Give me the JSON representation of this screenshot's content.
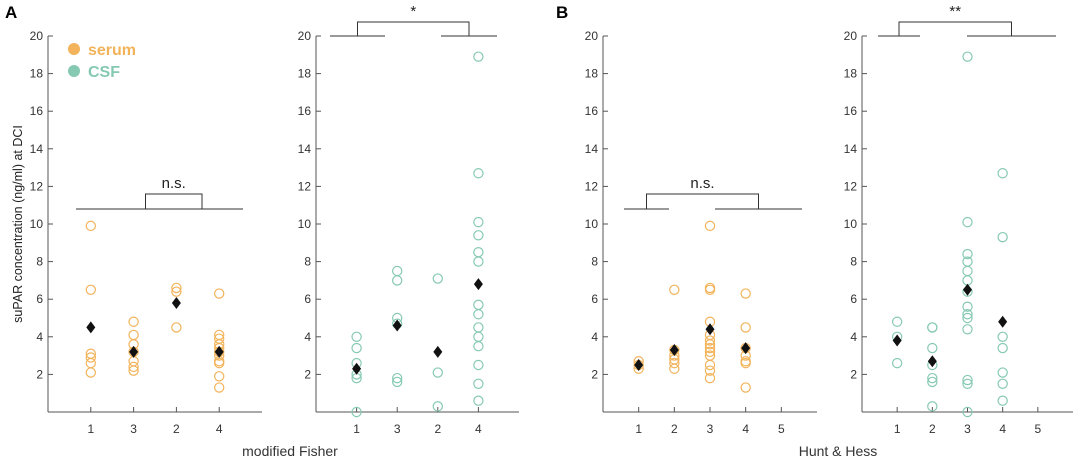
{
  "colors": {
    "serum": "#F2B35A",
    "csf": "#86C9B3",
    "mean": "#111111",
    "axis": "#555555",
    "bracket": "#333333"
  },
  "y_axis": {
    "label": "suPAR concentration (ng/ml) at DCI",
    "ylim": [
      0,
      20
    ],
    "ticks": [
      2,
      4,
      6,
      8,
      10,
      12,
      14,
      16,
      18,
      20
    ]
  },
  "legend": {
    "entries": [
      {
        "label": "serum",
        "series": "serum"
      },
      {
        "label": "CSF",
        "series": "csf"
      }
    ]
  },
  "panels": [
    {
      "letter": "A",
      "xlabel": "modified Fisher"
    },
    {
      "letter": "B",
      "xlabel": "Hunt & Hess"
    }
  ],
  "chart_data": [
    {
      "type": "scatter",
      "panel": "A",
      "series": "serum",
      "xlabel": "modified Fisher",
      "ylabel": "suPAR concentration (ng/ml) at DCI",
      "ylim": [
        0,
        20
      ],
      "categories": [
        "1",
        "3",
        "2",
        "4"
      ],
      "points": [
        [
          9.9,
          6.5,
          3.1,
          2.9,
          2.6,
          2.1
        ],
        [
          4.8,
          4.1,
          3.6,
          3.2,
          2.7,
          2.4,
          2.2
        ],
        [
          6.6,
          6.4,
          4.5
        ],
        [
          6.3,
          4.1,
          3.9,
          3.6,
          3.4,
          3.2,
          3.0,
          2.7,
          2.6,
          1.9,
          1.3
        ]
      ],
      "means": [
        4.5,
        3.2,
        5.8,
        3.2
      ],
      "significance": {
        "label": "n.s.",
        "groups": [
          [
            0,
            1
          ],
          [
            2,
            3
          ]
        ]
      }
    },
    {
      "type": "scatter",
      "panel": "A",
      "series": "csf",
      "xlabel": "modified Fisher",
      "ylim": [
        0,
        20
      ],
      "categories": [
        "1",
        "3",
        "2",
        "4"
      ],
      "points": [
        [
          4.0,
          3.4,
          2.6,
          2.0,
          1.8,
          0.0
        ],
        [
          7.5,
          7.0,
          5.0,
          4.7,
          1.8,
          1.6
        ],
        [
          7.1,
          2.1,
          0.3
        ],
        [
          18.9,
          12.7,
          10.1,
          9.4,
          8.5,
          8.0,
          5.7,
          5.2,
          4.5,
          4.0,
          3.5,
          2.5,
          1.5,
          0.6
        ]
      ],
      "means": [
        2.3,
        4.6,
        3.2,
        6.8
      ],
      "significance": {
        "label": "*",
        "groups": [
          [
            0,
            1
          ],
          [
            2,
            3
          ]
        ]
      }
    },
    {
      "type": "scatter",
      "panel": "B",
      "series": "serum",
      "xlabel": "Hunt & Hess",
      "ylim": [
        0,
        20
      ],
      "categories": [
        "1",
        "2",
        "3",
        "4",
        "5"
      ],
      "points": [
        [
          2.7,
          2.5,
          2.3
        ],
        [
          6.5,
          3.3,
          3.0,
          2.8,
          2.6,
          2.3
        ],
        [
          9.9,
          6.6,
          6.5,
          4.8,
          4.1,
          3.8,
          3.6,
          3.4,
          3.2,
          3.0,
          2.5,
          2.2,
          1.8
        ],
        [
          6.3,
          4.5,
          3.4,
          3.0,
          2.7,
          2.6,
          1.3
        ],
        []
      ],
      "means": [
        2.5,
        3.3,
        4.4,
        3.4,
        null
      ],
      "significance": {
        "label": "n.s.",
        "groups": [
          [
            0,
            1
          ],
          [
            2,
            4
          ]
        ]
      }
    },
    {
      "type": "scatter",
      "panel": "B",
      "series": "csf",
      "xlabel": "Hunt & Hess",
      "ylim": [
        0,
        20
      ],
      "categories": [
        "1",
        "2",
        "3",
        "4",
        "5"
      ],
      "points": [
        [
          4.8,
          4.0,
          2.6
        ],
        [
          4.5,
          4.5,
          3.4,
          2.5,
          1.8,
          1.6,
          0.3
        ],
        [
          18.9,
          10.1,
          8.4,
          8.0,
          7.5,
          7.0,
          6.4,
          5.6,
          5.2,
          5.0,
          4.4,
          1.7,
          1.5,
          0.0
        ],
        [
          12.7,
          9.3,
          4.0,
          3.4,
          2.1,
          1.5,
          0.6
        ],
        []
      ],
      "means": [
        3.8,
        2.7,
        6.5,
        4.8,
        null
      ],
      "significance": {
        "label": "**",
        "groups": [
          [
            0,
            1
          ],
          [
            2,
            4
          ]
        ]
      }
    }
  ]
}
